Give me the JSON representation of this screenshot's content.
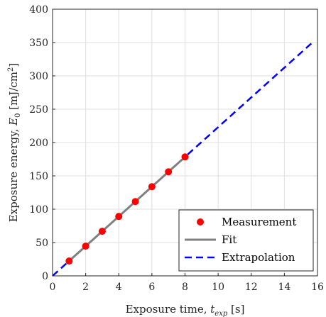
{
  "chart_data": {
    "type": "line",
    "title": "",
    "xlabel_main": "Exposure time, ",
    "xlabel_var": "t",
    "xlabel_sub": "exp",
    "xlabel_unit": " [s]",
    "ylabel_main": "Exposure energy, ",
    "ylabel_var": "E",
    "ylabel_sub": "0",
    "ylabel_unit_pre": " [mJ/cm",
    "ylabel_unit_sup": "2",
    "ylabel_unit_post": "]",
    "xlim": [
      0,
      16
    ],
    "ylim": [
      0,
      400
    ],
    "xticks": [
      "0",
      "2",
      "4",
      "6",
      "8",
      "10",
      "12",
      "14",
      "16"
    ],
    "yticks": [
      "0",
      "50",
      "100",
      "150",
      "200",
      "250",
      "300",
      "350",
      "400"
    ],
    "grid": true,
    "legend_position": "bottom-right",
    "series": [
      {
        "name": "Measurement",
        "kind": "scatter",
        "color": "#ff0000",
        "x": [
          1,
          2,
          3,
          4,
          5,
          6,
          7,
          8
        ],
        "y": [
          22.3,
          44.6,
          66.9,
          89.2,
          111.5,
          133.8,
          156.1,
          178.4
        ]
      },
      {
        "name": "Fit",
        "kind": "line",
        "color": "#808080",
        "x": [
          1,
          8
        ],
        "y": [
          22.3,
          178.4
        ]
      },
      {
        "name": "Extrapolation",
        "kind": "dashed-line",
        "color": "#0000ff",
        "x": [
          0,
          15.8
        ],
        "y": [
          0,
          352.5
        ]
      }
    ]
  }
}
